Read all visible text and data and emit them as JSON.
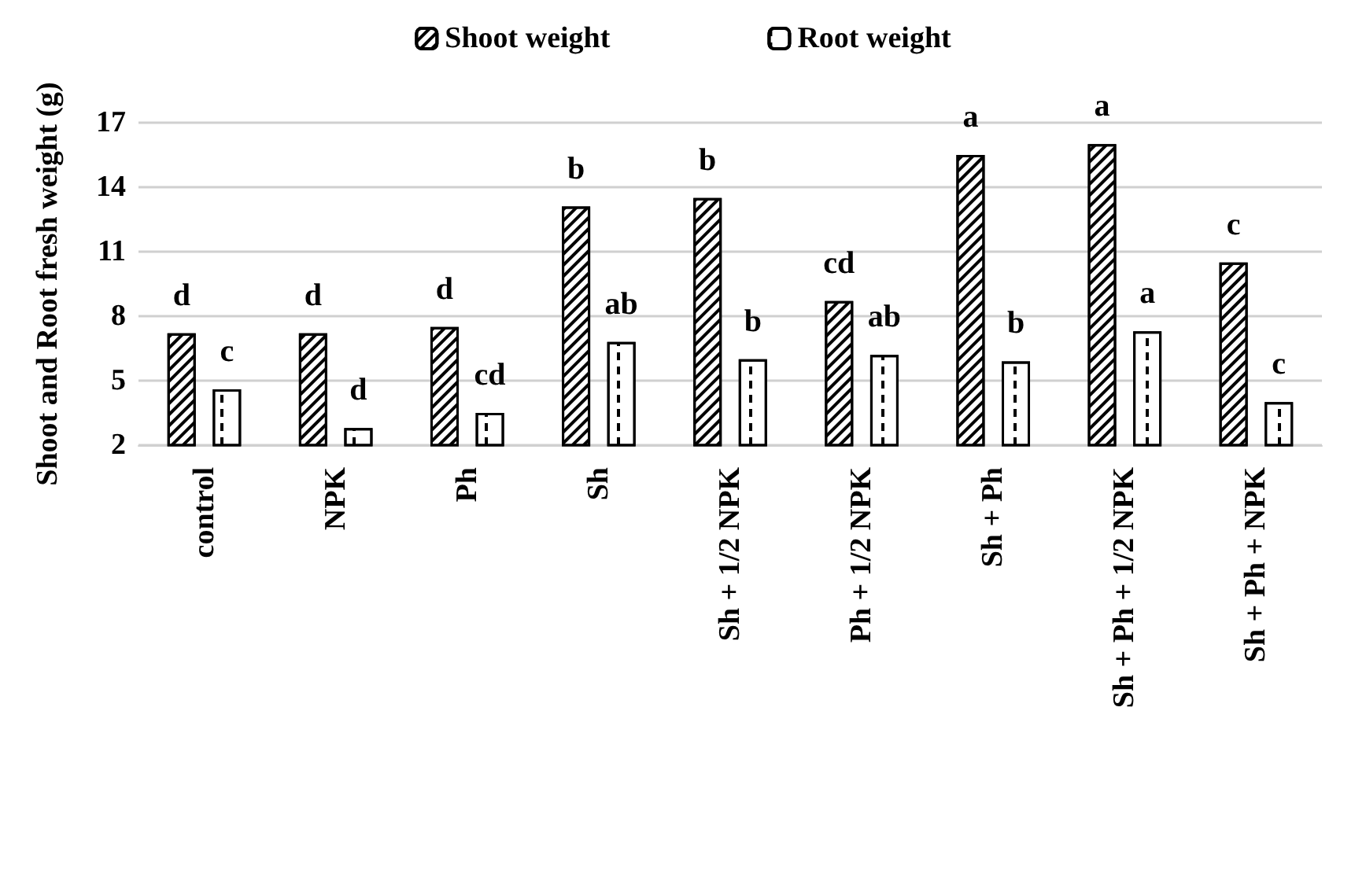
{
  "chart_data": {
    "type": "bar",
    "ylabel": "Shoot and Root fresh weight (g)",
    "categories": [
      "control",
      "NPK",
      "Ph",
      "Sh",
      "Sh + 1/2 NPK",
      "Ph + 1/2 NPK",
      "Sh + Ph",
      "Sh + Ph + 1/2 NPK",
      "Sh + Ph + NPK"
    ],
    "series": [
      {
        "name": "Shoot weight",
        "color": "#ffffff",
        "values": [
          7.2,
          7.2,
          7.5,
          13.1,
          13.5,
          8.7,
          15.5,
          16.0,
          10.5
        ],
        "value_labels": [
          "d",
          "d",
          "d",
          "b",
          "b",
          "cd",
          "a",
          "a",
          "c"
        ]
      },
      {
        "name": "Root weight",
        "color": "#ffffff",
        "values": [
          4.6,
          2.8,
          3.5,
          6.8,
          6.0,
          6.2,
          5.9,
          7.3,
          4.0
        ],
        "value_labels": [
          "c",
          "d",
          "cd",
          "ab",
          "b",
          "ab",
          "b",
          "a",
          "c"
        ]
      }
    ],
    "ylim": [
      2,
      17
    ],
    "yticks": [
      2,
      5,
      8,
      11,
      14,
      17
    ],
    "grid": "y",
    "legend": "top"
  }
}
